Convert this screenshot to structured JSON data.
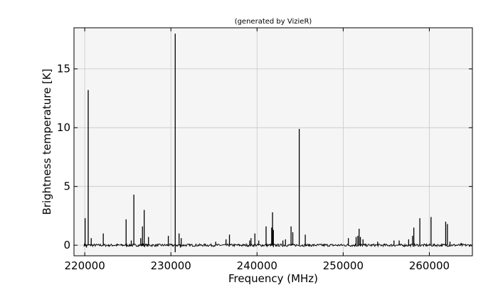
{
  "chart_data": {
    "type": "line",
    "title": "(generated by VizieR)",
    "xlabel": "Frequency (MHz)",
    "ylabel": "Brightness temperature [K]",
    "xlim": [
      218750,
      265000
    ],
    "ylim": [
      -0.9,
      18.5
    ],
    "xticks": [
      220000,
      230000,
      240000,
      250000,
      260000
    ],
    "yticks": [
      0,
      5,
      10,
      15
    ],
    "grid": true,
    "colors": {
      "line": "#000000",
      "plot_background": "#f5f5f5",
      "grid": "#c8c8c8"
    },
    "series": [
      {
        "peaks": [
          [
            220040,
            2.3
          ],
          [
            220400,
            13.2
          ],
          [
            220750,
            0.6
          ],
          [
            222150,
            1.0
          ],
          [
            224800,
            2.2
          ],
          [
            225400,
            0.4
          ],
          [
            225700,
            4.3
          ],
          [
            226500,
            0.6
          ],
          [
            226700,
            1.6
          ],
          [
            226900,
            3.0
          ],
          [
            227400,
            0.7
          ],
          [
            229700,
            0.8
          ],
          [
            230500,
            18.0
          ],
          [
            230950,
            1.0
          ],
          [
            231200,
            0.6
          ],
          [
            235200,
            0.3
          ],
          [
            236400,
            0.5
          ],
          [
            236800,
            0.9
          ],
          [
            239150,
            0.4
          ],
          [
            239300,
            0.6
          ],
          [
            239750,
            1.0
          ],
          [
            240200,
            0.4
          ],
          [
            241050,
            1.6
          ],
          [
            241700,
            1.5
          ],
          [
            241800,
            2.8
          ],
          [
            241900,
            1.3
          ],
          [
            243000,
            0.4
          ],
          [
            243300,
            0.5
          ],
          [
            243950,
            1.6
          ],
          [
            244150,
            1.1
          ],
          [
            244900,
            9.9
          ],
          [
            245600,
            0.9
          ],
          [
            250600,
            0.6
          ],
          [
            251500,
            0.7
          ],
          [
            251700,
            0.8
          ],
          [
            251850,
            1.4
          ],
          [
            252000,
            0.7
          ],
          [
            252300,
            0.5
          ],
          [
            254000,
            0.3
          ],
          [
            255900,
            0.4
          ],
          [
            256500,
            0.4
          ],
          [
            257600,
            0.5
          ],
          [
            258050,
            0.8
          ],
          [
            258200,
            1.5
          ],
          [
            258900,
            2.3
          ],
          [
            260200,
            2.4
          ],
          [
            261900,
            2.0
          ],
          [
            262100,
            1.8
          ],
          [
            262400,
            0.3
          ],
          [
            263700,
            0.2
          ]
        ],
        "dips": [
          [
            220200,
            -0.2
          ],
          [
            230500,
            -0.6
          ],
          [
            231100,
            -0.2
          ],
          [
            241900,
            -0.15
          ],
          [
            252000,
            -0.1
          ]
        ]
      }
    ]
  }
}
